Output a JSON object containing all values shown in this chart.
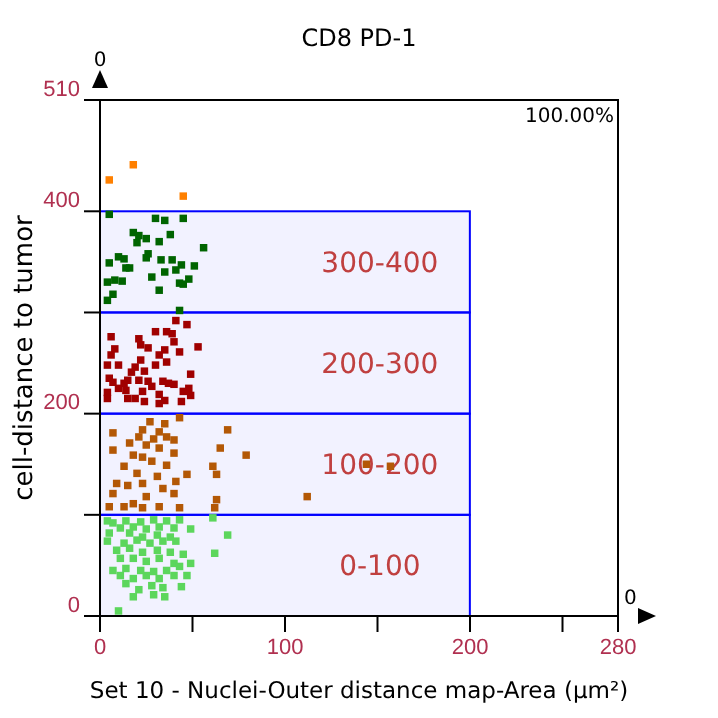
{
  "chart_data": {
    "type": "scatter",
    "title": "CD8 PD-1",
    "xlabel": "Set 10 - Nuclei-Outer distance map-Area (µm²)",
    "ylabel": "cell-distance to tumor",
    "xlim": [
      0,
      280
    ],
    "xticks": [
      0,
      {
        "value": 50,
        "label": null
      },
      100,
      {
        "value": 150,
        "label": null
      },
      200,
      {
        "value": 250,
        "label": null
      },
      280
    ],
    "ylim": [
      0,
      510
    ],
    "yticks": [
      0,
      {
        "value": 100,
        "label": null
      },
      200,
      {
        "value": 300,
        "label": null
      },
      400,
      510
    ],
    "grid": false,
    "marker": "square",
    "bands": [
      {
        "axis": "y",
        "from": 0,
        "to": 100,
        "label": "0-100",
        "color": "#0000ff"
      },
      {
        "axis": "y",
        "from": 100,
        "to": 200,
        "label": "100-200",
        "color": "#0000ff"
      },
      {
        "axis": "y",
        "from": 200,
        "to": 300,
        "label": "200-300",
        "color": "#0000ff"
      },
      {
        "axis": "y",
        "from": 300,
        "to": 400,
        "label": "300-400",
        "color": "#0000ff"
      }
    ],
    "annotations": [
      "100.00%",
      "0",
      "0"
    ],
    "series": [
      {
        "color": "#ff8000",
        "x": [
          5,
          18,
          45
        ],
        "values": [
          431,
          446,
          415
        ]
      },
      {
        "color": "#006400",
        "x": [
          5,
          30,
          35,
          45,
          18,
          21,
          38,
          25,
          20,
          32,
          56,
          10,
          5,
          13,
          26,
          25,
          33,
          39,
          44,
          51,
          14,
          16,
          35,
          41,
          28,
          48,
          43,
          45,
          8,
          4,
          12,
          7,
          4,
          32,
          43
        ],
        "values": [
          397,
          393,
          391,
          393,
          379,
          376,
          377,
          373,
          369,
          370,
          364,
          355,
          349,
          353,
          358,
          354,
          352,
          352,
          347,
          346,
          344,
          344,
          340,
          342,
          335,
          333,
          329,
          328,
          332,
          330,
          331,
          318,
          312,
          322,
          302
        ]
      },
      {
        "color": "#a00000",
        "x": [
          41,
          47,
          36,
          30,
          39,
          6,
          21,
          40,
          22,
          26,
          8,
          53,
          35,
          43,
          32,
          6,
          22,
          36,
          4,
          10,
          19,
          30,
          17,
          24,
          49,
          5,
          7,
          13,
          15,
          21,
          26,
          34,
          37,
          40,
          10,
          14,
          23,
          28,
          4,
          4,
          15,
          19,
          32,
          35,
          45,
          48,
          49,
          24,
          32,
          44
        ],
        "values": [
          292,
          288,
          281,
          281,
          279,
          276,
          274,
          271,
          268,
          265,
          264,
          266,
          263,
          261,
          258,
          258,
          253,
          251,
          248,
          248,
          246,
          248,
          241,
          242,
          239,
          235,
          231,
          230,
          233,
          233,
          232,
          232,
          230,
          229,
          225,
          223,
          222,
          227,
          221,
          215,
          215,
          215,
          219,
          213,
          222,
          225,
          218,
          212,
          210,
          212
        ]
      },
      {
        "color": "#b35806",
        "x": [
          27,
          35,
          43,
          23,
          32,
          69,
          7,
          21,
          29,
          36,
          40,
          16,
          25,
          32,
          65,
          79,
          7,
          18,
          23,
          40,
          28,
          36,
          13,
          61,
          20,
          31,
          47,
          63,
          41,
          9,
          15,
          23,
          34,
          7,
          25,
          40,
          112,
          18,
          63,
          5,
          13,
          23,
          32,
          43,
          62,
          144,
          157
        ],
        "values": [
          192,
          190,
          196,
          184,
          182,
          184,
          181,
          177,
          175,
          177,
          174,
          171,
          169,
          166,
          166,
          159,
          164,
          159,
          157,
          161,
          153,
          149,
          148,
          148,
          141,
          138,
          140,
          140,
          133,
          131,
          129,
          131,
          126,
          121,
          118,
          121,
          118,
          111,
          115,
          108,
          108,
          107,
          108,
          107,
          107,
          150,
          148
        ]
      },
      {
        "color": "#5cd65c",
        "x": [
          4,
          7,
          14,
          22,
          29,
          36,
          43,
          11,
          18,
          25,
          32,
          40,
          49,
          5,
          16,
          23,
          31,
          38,
          4,
          13,
          20,
          27,
          34,
          41,
          9,
          16,
          23,
          31,
          38,
          45,
          11,
          18,
          25,
          32,
          40,
          7,
          14,
          22,
          29,
          36,
          43,
          11,
          18,
          25,
          32,
          40,
          14,
          21,
          28,
          34,
          18,
          29,
          35,
          61,
          69,
          62,
          49,
          47,
          44,
          10
        ],
        "values": [
          94,
          92,
          94,
          93,
          95,
          94,
          95,
          87,
          88,
          86,
          88,
          87,
          86,
          82,
          82,
          78,
          80,
          78,
          74,
          72,
          75,
          72,
          74,
          74,
          65,
          67,
          63,
          65,
          63,
          61,
          57,
          57,
          54,
          57,
          52,
          45,
          47,
          45,
          44,
          45,
          49,
          40,
          37,
          40,
          37,
          40,
          32,
          26,
          30,
          28,
          19,
          21,
          19,
          97,
          80,
          62,
          52,
          40,
          29,
          5
        ]
      }
    ]
  }
}
